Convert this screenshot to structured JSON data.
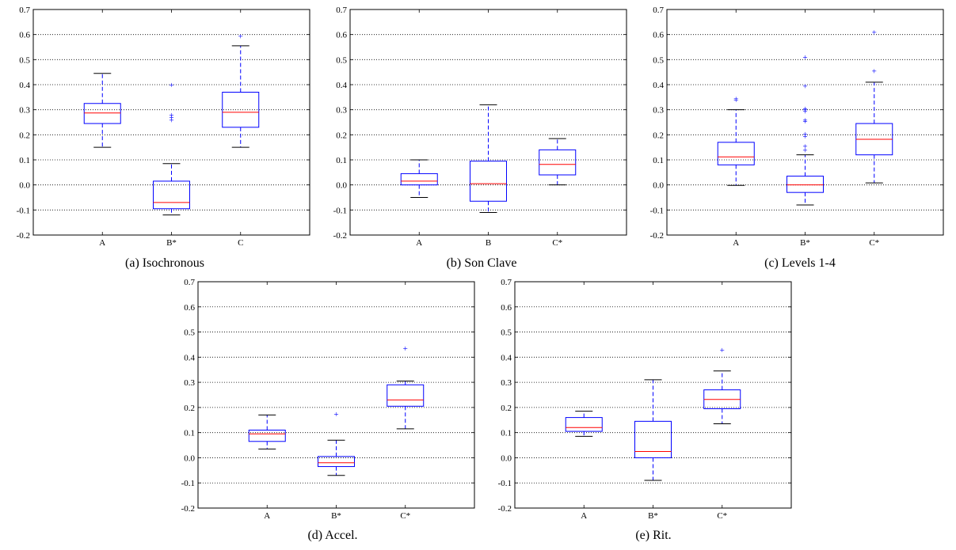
{
  "figure": {
    "panels_count": 5
  },
  "chart_data": [
    {
      "type": "box",
      "caption": "(a) Isochronous",
      "categories": [
        "A",
        "B*",
        "C"
      ],
      "ylim": [
        -0.2,
        0.7
      ],
      "yticks": [
        "-0.2",
        "-0.1",
        "0.0",
        "0.1",
        "0.2",
        "0.3",
        "0.4",
        "0.5",
        "0.6",
        "0.7"
      ],
      "grid": true,
      "boxes": [
        {
          "label": "A",
          "whisker_low": 0.15,
          "q1": 0.245,
          "median": 0.287,
          "q3": 0.325,
          "whisker_high": 0.445,
          "outliers": []
        },
        {
          "label": "B*",
          "whisker_low": -0.12,
          "q1": -0.095,
          "median": -0.07,
          "q3": 0.015,
          "whisker_high": 0.085,
          "outliers": [
            0.26,
            0.27,
            0.28,
            0.4
          ]
        },
        {
          "label": "C",
          "whisker_low": 0.15,
          "q1": 0.23,
          "median": 0.29,
          "q3": 0.37,
          "whisker_high": 0.555,
          "outliers": [
            0.595
          ]
        }
      ]
    },
    {
      "type": "box",
      "caption": "(b) Son Clave",
      "categories": [
        "A",
        "B",
        "C*"
      ],
      "ylim": [
        -0.2,
        0.7
      ],
      "yticks": [
        "-0.2",
        "-0.1",
        "0.0",
        "0.1",
        "0.2",
        "0.3",
        "0.4",
        "0.5",
        "0.6",
        "0.7"
      ],
      "grid": true,
      "boxes": [
        {
          "label": "A",
          "whisker_low": -0.05,
          "q1": 0.0,
          "median": 0.015,
          "q3": 0.045,
          "whisker_high": 0.1,
          "outliers": []
        },
        {
          "label": "B",
          "whisker_low": -0.11,
          "q1": -0.065,
          "median": 0.005,
          "q3": 0.095,
          "whisker_high": 0.32,
          "outliers": []
        },
        {
          "label": "C*",
          "whisker_low": 0.0,
          "q1": 0.04,
          "median": 0.082,
          "q3": 0.14,
          "whisker_high": 0.185,
          "outliers": []
        }
      ]
    },
    {
      "type": "box",
      "caption": "(c) Levels 1-4",
      "categories": [
        "A",
        "B*",
        "C*"
      ],
      "ylim": [
        -0.2,
        0.7
      ],
      "yticks": [
        "-0.2",
        "-0.1",
        "0.0",
        "0.1",
        "0.2",
        "0.3",
        "0.4",
        "0.5",
        "0.6",
        "0.7"
      ],
      "grid": true,
      "boxes": [
        {
          "label": "A",
          "whisker_low": -0.002,
          "q1": 0.08,
          "median": 0.112,
          "q3": 0.17,
          "whisker_high": 0.3,
          "outliers": [
            0.34,
            0.345
          ]
        },
        {
          "label": "B*",
          "whisker_low": -0.08,
          "q1": -0.03,
          "median": 0.0,
          "q3": 0.035,
          "whisker_high": 0.12,
          "outliers": [
            0.14,
            0.155,
            0.195,
            0.205,
            0.255,
            0.26,
            0.295,
            0.3,
            0.305,
            0.395,
            0.51
          ]
        },
        {
          "label": "C*",
          "whisker_low": 0.008,
          "q1": 0.12,
          "median": 0.182,
          "q3": 0.245,
          "whisker_high": 0.41,
          "outliers": [
            0.455,
            0.61
          ]
        }
      ]
    },
    {
      "type": "box",
      "caption": "(d) Accel.",
      "categories": [
        "A",
        "B*",
        "C*"
      ],
      "ylim": [
        -0.2,
        0.7
      ],
      "yticks": [
        "-0.2",
        "-0.1",
        "0.0",
        "0.1",
        "0.2",
        "0.3",
        "0.4",
        "0.5",
        "0.6",
        "0.7"
      ],
      "grid": true,
      "boxes": [
        {
          "label": "A",
          "whisker_low": 0.035,
          "q1": 0.065,
          "median": 0.095,
          "q3": 0.11,
          "whisker_high": 0.17,
          "outliers": []
        },
        {
          "label": "B*",
          "whisker_low": -0.07,
          "q1": -0.035,
          "median": -0.02,
          "q3": 0.005,
          "whisker_high": 0.07,
          "outliers": [
            0.175
          ]
        },
        {
          "label": "C*",
          "whisker_low": 0.115,
          "q1": 0.205,
          "median": 0.23,
          "q3": 0.29,
          "whisker_high": 0.305,
          "outliers": [
            0.435
          ]
        }
      ]
    },
    {
      "type": "box",
      "caption": "(e) Rit.",
      "categories": [
        "A",
        "B*",
        "C*"
      ],
      "ylim": [
        -0.2,
        0.7
      ],
      "yticks": [
        "-0.2",
        "-0.1",
        "0.0",
        "0.1",
        "0.2",
        "0.3",
        "0.4",
        "0.5",
        "0.6",
        "0.7"
      ],
      "grid": true,
      "boxes": [
        {
          "label": "A",
          "whisker_low": 0.085,
          "q1": 0.105,
          "median": 0.12,
          "q3": 0.16,
          "whisker_high": 0.185,
          "outliers": []
        },
        {
          "label": "B*",
          "whisker_low": -0.09,
          "q1": 0.0,
          "median": 0.025,
          "q3": 0.145,
          "whisker_high": 0.31,
          "outliers": []
        },
        {
          "label": "C*",
          "whisker_low": 0.135,
          "q1": 0.195,
          "median": 0.232,
          "q3": 0.27,
          "whisker_high": 0.345,
          "outliers": [
            0.43
          ]
        }
      ]
    }
  ],
  "colors": {
    "box": "#0000ff",
    "median": "#ff0000",
    "whisker": "#0000ff",
    "cap": "#000000",
    "outlier": "#0000ff",
    "grid": "#000000"
  }
}
